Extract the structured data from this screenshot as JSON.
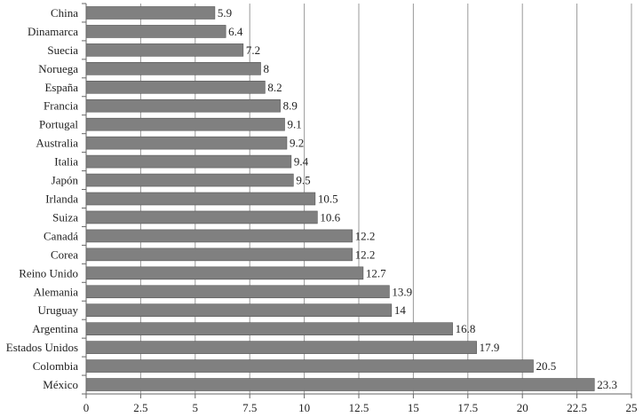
{
  "chart_data": {
    "type": "bar",
    "orientation": "horizontal",
    "title": "",
    "xlabel": "",
    "ylabel": "",
    "categories": [
      "China",
      "Dinamarca",
      "Suecia",
      "Noruega",
      "España",
      "Francia",
      "Portugal",
      "Australia",
      "Italia",
      "Japón",
      "Irlanda",
      "Suiza",
      "Canadá",
      "Corea",
      "Reino Unido",
      "Alemania",
      "Uruguay",
      "Argentina",
      "Estados Unidos",
      "Colombia",
      "México"
    ],
    "values": [
      5.9,
      6.4,
      7.2,
      8,
      8.2,
      8.9,
      9.1,
      9.2,
      9.4,
      9.5,
      10.5,
      10.6,
      12.2,
      12.2,
      12.7,
      13.9,
      14,
      16.8,
      17.9,
      20.5,
      23.3
    ],
    "value_labels": [
      "5.9",
      "6.4",
      "7.2",
      "8",
      "8.2",
      "8.9",
      "9.1",
      "9.2",
      "9.4",
      "9.5",
      "10.5",
      "10.6",
      "12.2",
      "12.2",
      "12.7",
      "13.9",
      "14",
      "16.8",
      "17.9",
      "20.5",
      "23.3"
    ],
    "xlim": [
      0,
      25
    ],
    "xticks": [
      0,
      2.5,
      5,
      7.5,
      10,
      12.5,
      15,
      17.5,
      20,
      22.5,
      25
    ],
    "xtick_labels": [
      "0",
      "2.5",
      "5",
      "7.5",
      "10",
      "12.5",
      "15",
      "17.5",
      "20",
      "22.5",
      "25"
    ],
    "grid": "vertical",
    "legend": "none",
    "colors": {
      "bar": "#808080",
      "bar_border": "#555555",
      "grid": "#9a9a9a",
      "text": "#222222"
    }
  }
}
